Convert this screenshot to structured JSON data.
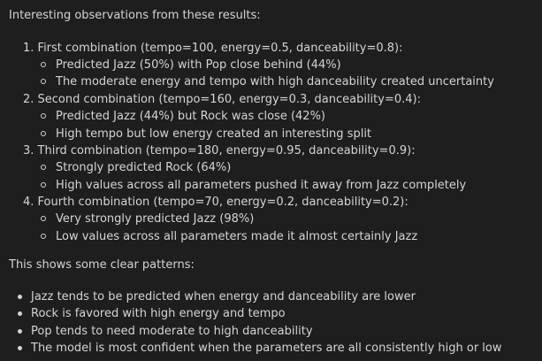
{
  "intro": "Interesting observations from these results:",
  "combinations": [
    {
      "header": "1. First combination (tempo=100, energy=0.5, danceability=0.8):",
      "points": [
        "Predicted Jazz (50%) with Pop close behind (44%)",
        "The moderate energy and tempo with high danceability created uncertainty"
      ]
    },
    {
      "header": "2. Second combination (tempo=160, energy=0.3, danceability=0.4):",
      "points": [
        "Predicted Jazz (44%) but Rock was close (42%)",
        "High tempo but low energy created an interesting split"
      ]
    },
    {
      "header": "3. Third combination (tempo=180, energy=0.95, danceability=0.9):",
      "points": [
        "Strongly predicted Rock (64%)",
        "High values across all parameters pushed it away from Jazz completely"
      ]
    },
    {
      "header": "4. Fourth combination (tempo=70, energy=0.2, danceability=0.2):",
      "points": [
        "Very strongly predicted Jazz (98%)",
        "Low values across all parameters made it almost certainly Jazz"
      ]
    }
  ],
  "patterns_intro": "This shows some clear patterns:",
  "patterns": [
    "Jazz tends to be predicted when energy and danceability are lower",
    "Rock is favored with high energy and tempo",
    "Pop tends to need moderate to high danceability",
    "The model is most confident when the parameters are all consistently high or low"
  ],
  "colors": {
    "background": "#1e1e1e",
    "text": "#d4d4d4"
  }
}
